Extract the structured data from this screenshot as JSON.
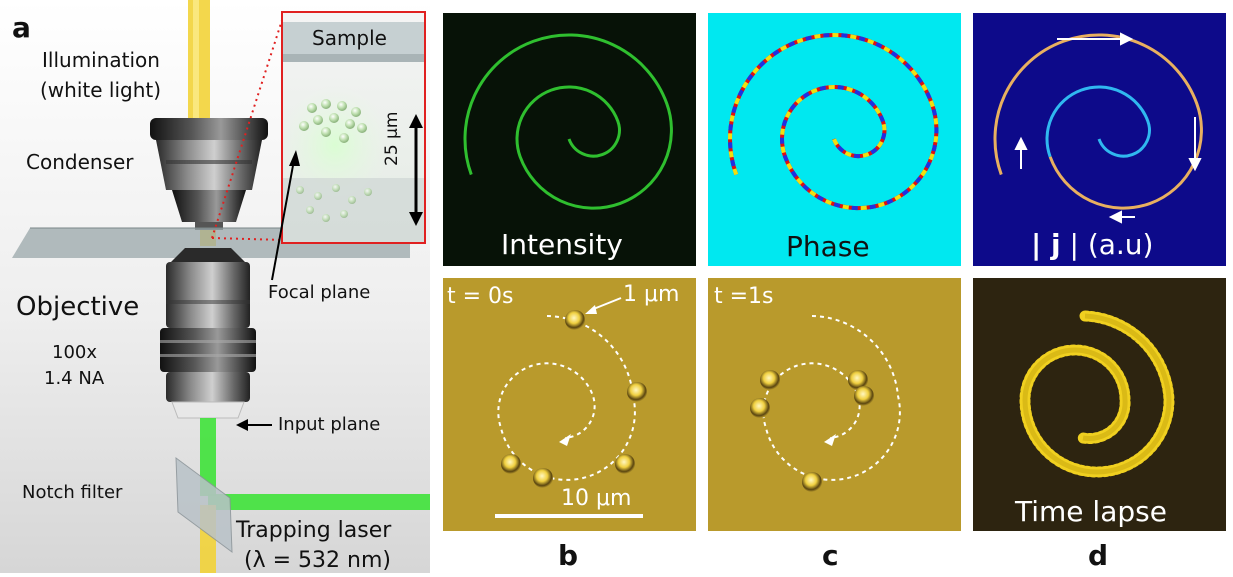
{
  "panel_a": {
    "letter": "a",
    "illumination_line1": "Illumination",
    "illumination_line2": "(white light)",
    "condenser": "Condenser",
    "objective": "Objective",
    "objective_mag": "100x",
    "objective_na": "1.4 NA",
    "focal_plane": "Focal plane",
    "input_plane": "Input plane",
    "notch_filter": "Notch filter",
    "trapping_laser_line1": "Trapping laser",
    "trapping_laser_line2": "(λ = 532 nm)",
    "inset_sample": "Sample",
    "inset_scale": "25 μm"
  },
  "panel_top": {
    "intensity": "Intensity",
    "phase": "Phase",
    "current_bars": "| ",
    "current_j": "j",
    "current_rest": " | (a.u)"
  },
  "panel_bottom": {
    "t0": "t = 0s",
    "bead_size": "1 μm",
    "scalebar": "10 μm",
    "t1": "t =1s",
    "time_lapse": "Time lapse"
  },
  "panel_letters": {
    "b": "b",
    "c": "c",
    "d": "d"
  },
  "colors": {
    "illumination_beam": "#f2d338",
    "laser_beam": "#3fe23a",
    "intensity_bg": "#071207",
    "intensity_line": "#2fbf2f",
    "phase_bg": "#00e8f0",
    "current_bg": "#0d0a8a",
    "micrograph_bg": "#b99a2c",
    "timelapse_bg": "#2d2410",
    "timelapse_trace": "#f0d020",
    "inset_border": "#e02020"
  }
}
